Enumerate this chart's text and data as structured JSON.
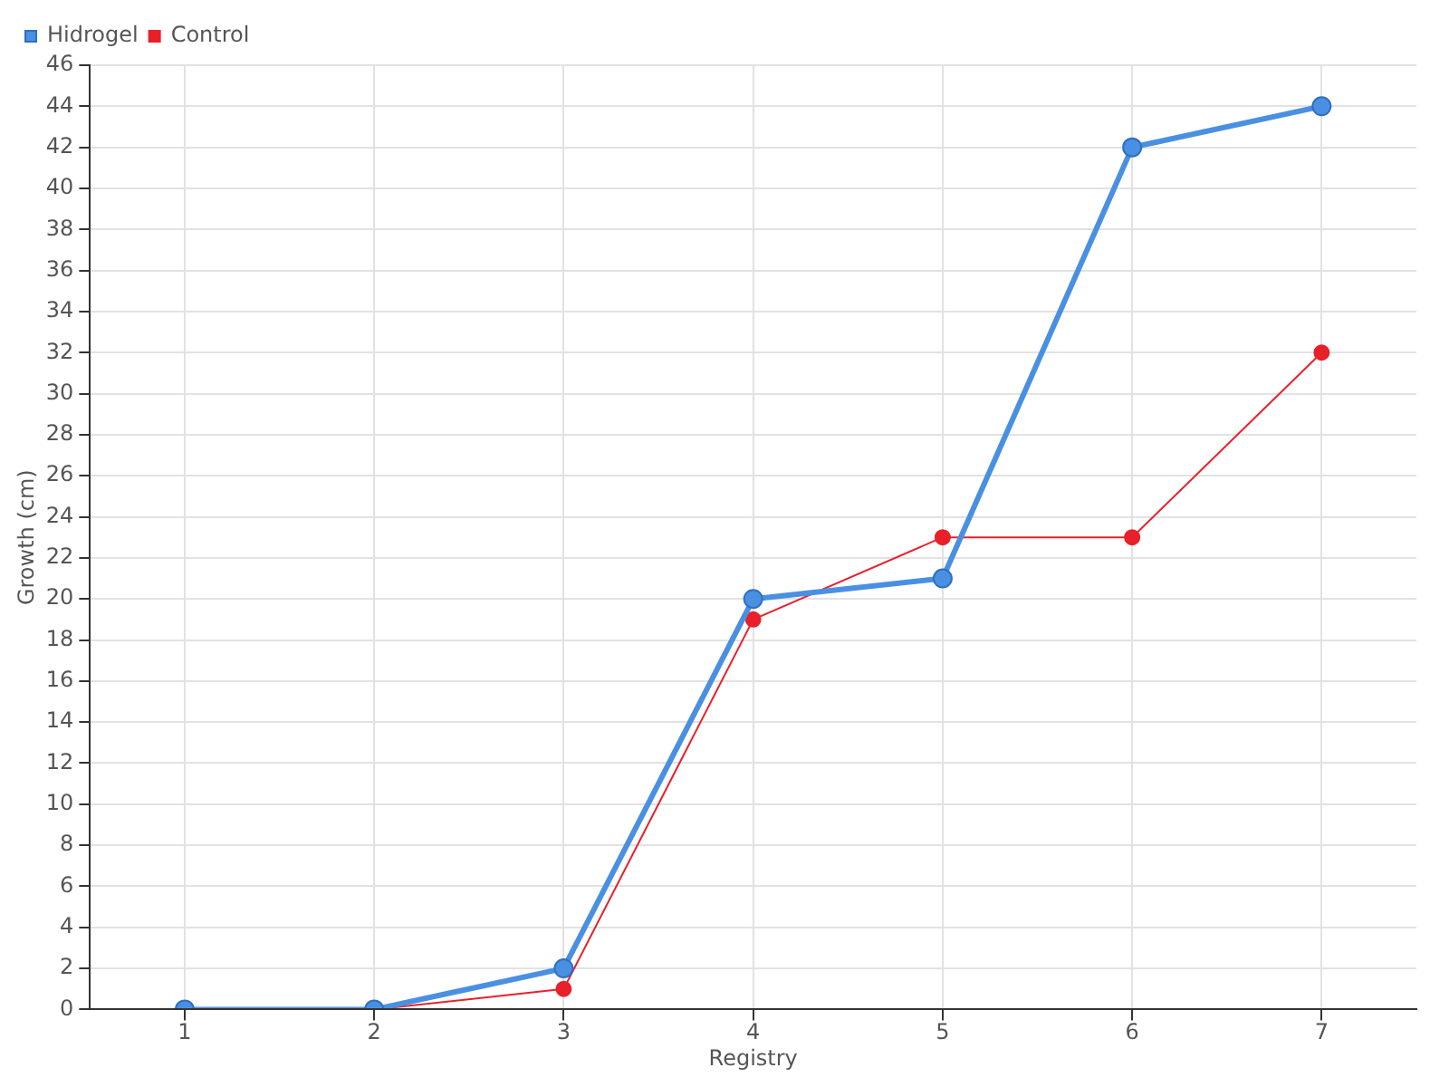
{
  "chart_data": {
    "type": "line",
    "xlabel": "Registry",
    "ylabel": "Growth (cm)",
    "categories": [
      "1",
      "2",
      "3",
      "4",
      "5",
      "6",
      "7"
    ],
    "series": [
      {
        "name": "Hidrogel",
        "color": "#4a90e2",
        "values": [
          0,
          0,
          2,
          20,
          21,
          42,
          44
        ]
      },
      {
        "name": "Control",
        "color": "#e8202a",
        "values": [
          0,
          0,
          1,
          19,
          23,
          23,
          32
        ]
      }
    ],
    "ylim": [
      0,
      46
    ],
    "yticks": [
      0,
      2,
      4,
      6,
      8,
      10,
      12,
      14,
      16,
      18,
      20,
      22,
      24,
      26,
      28,
      30,
      32,
      34,
      36,
      38,
      40,
      42,
      44,
      46
    ],
    "grid": true,
    "legend": "top left",
    "marker": "circle",
    "line_style": "solid"
  }
}
